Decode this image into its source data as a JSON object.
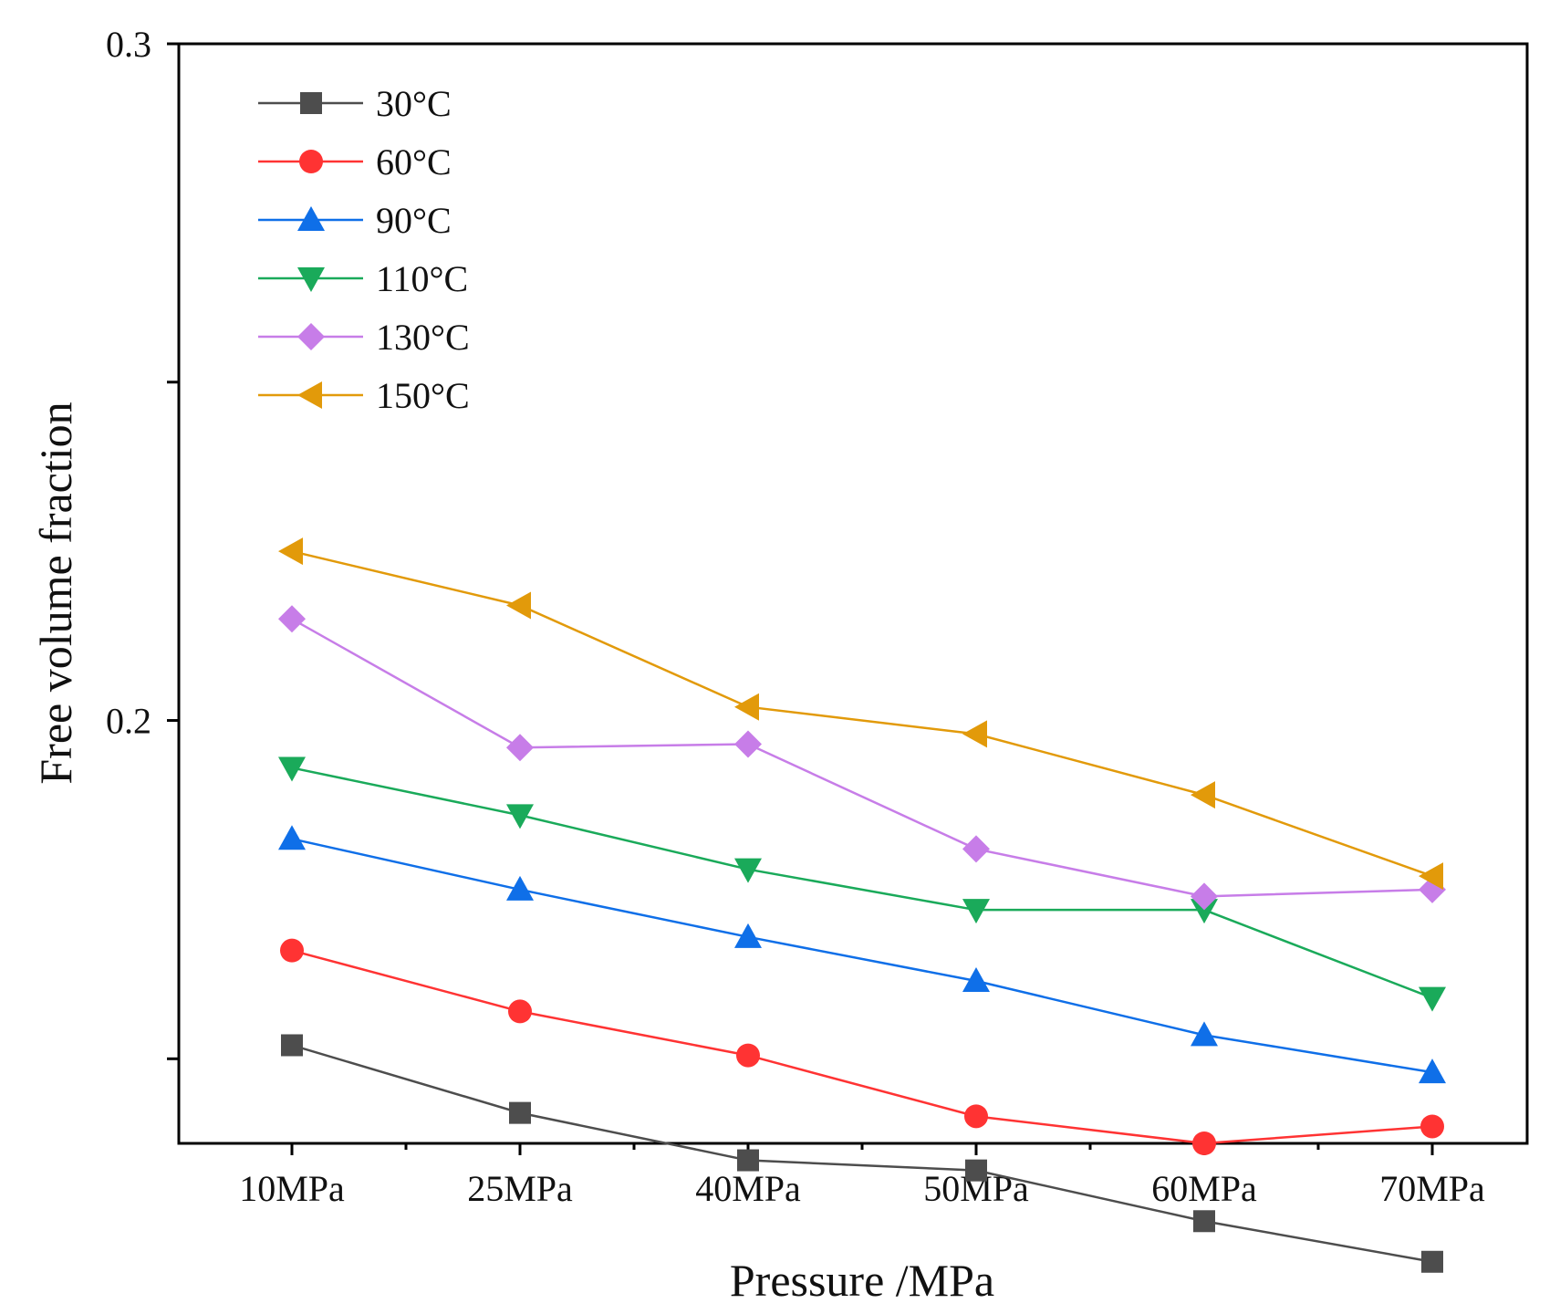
{
  "chart_data": {
    "type": "line",
    "title": "",
    "xlabel": "Pressure /MPa",
    "ylabel": "Free volume fraction",
    "categories": [
      "10MPa",
      "25MPa",
      "40MPa",
      "50MPa",
      "60MPa",
      "70MPa"
    ],
    "ylim": [
      0.1375,
      0.3
    ],
    "yticks": [
      {
        "value": 0.3,
        "label": "0.3"
      },
      {
        "value": 0.25,
        "label": ""
      },
      {
        "value": 0.2,
        "label": "0.2"
      },
      {
        "value": 0.15,
        "label": ""
      }
    ],
    "grid": false,
    "legend_position": "top-left",
    "series": [
      {
        "name": "30°C",
        "color": "#4d4d4d",
        "marker": "square",
        "values": [
          0.152,
          0.142,
          0.135,
          0.1335,
          0.126,
          0.12
        ]
      },
      {
        "name": "60°C",
        "color": "#ff3333",
        "marker": "circle",
        "values": [
          0.166,
          0.157,
          0.1505,
          0.1415,
          0.1375,
          0.14
        ]
      },
      {
        "name": "90°C",
        "color": "#0f6fe8",
        "marker": "triangle-up",
        "values": [
          0.1825,
          0.175,
          0.168,
          0.1615,
          0.1535,
          0.148
        ]
      },
      {
        "name": "110°C",
        "color": "#1aaa5a",
        "marker": "triangle-down",
        "values": [
          0.193,
          0.186,
          0.178,
          0.172,
          0.172,
          0.159
        ]
      },
      {
        "name": "130°C",
        "color": "#c77de8",
        "marker": "diamond",
        "values": [
          0.215,
          0.196,
          0.1965,
          0.181,
          0.174,
          0.175
        ]
      },
      {
        "name": "150°C",
        "color": "#e29a0a",
        "marker": "triangle-left",
        "values": [
          0.225,
          0.217,
          0.202,
          0.198,
          0.189,
          0.177
        ]
      }
    ]
  }
}
